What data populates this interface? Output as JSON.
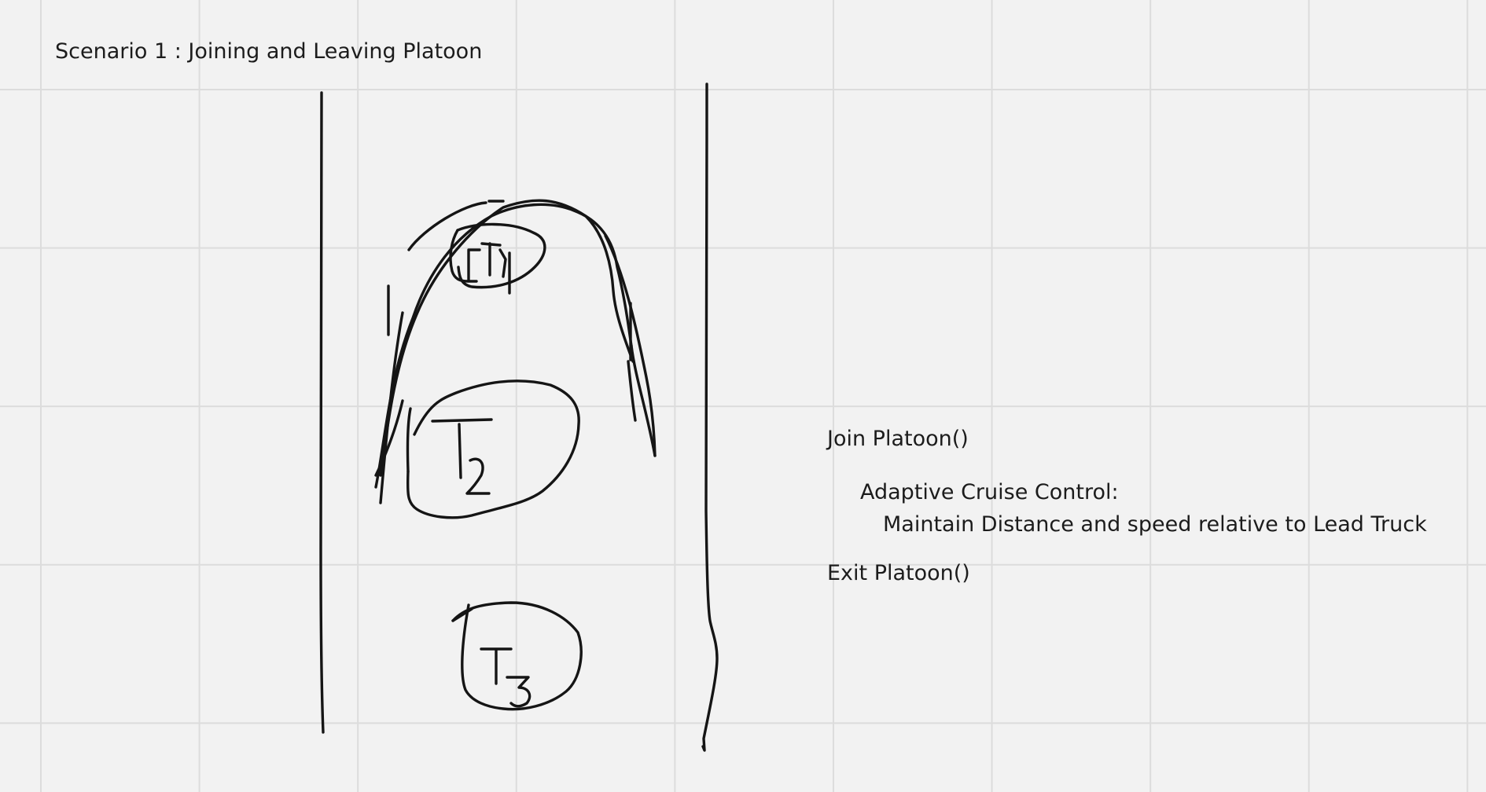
{
  "board": {
    "title": "Scenario 1 : Joining and Leaving Platoon",
    "background_color": "#f2f2f2",
    "grid_color": "#dcdcdc",
    "ink_color": "#151515"
  },
  "diagram": {
    "trucks": [
      {
        "id": "T1",
        "label_handwritten": "T1",
        "role": "lead"
      },
      {
        "id": "T2",
        "label_handwritten": "T2"
      },
      {
        "id": "T3",
        "label_handwritten": "T3"
      }
    ]
  },
  "notes": {
    "join": "Join Platoon()",
    "acc": "Adaptive Cruise Control:",
    "maintain": "Maintain Distance and speed relative to Lead Truck",
    "exit": "Exit Platoon()"
  }
}
